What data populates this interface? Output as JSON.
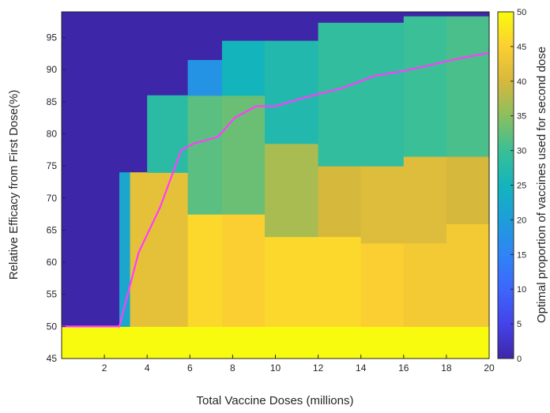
{
  "chart_data": {
    "type": "heatmap",
    "xlabel": "Total Vaccine Doses (millions)",
    "ylabel": "Relative Efficacy from First Dose(%)",
    "colorbar_label": "Optimal proportion of vaccines used for second dose",
    "xlim": [
      0,
      20
    ],
    "ylim": [
      45,
      99
    ],
    "clim": [
      0,
      50
    ],
    "colormap": "parula",
    "x_ticks": [
      2,
      4,
      6,
      8,
      10,
      12,
      14,
      16,
      18,
      20
    ],
    "y_ticks": [
      45,
      50,
      55,
      60,
      65,
      70,
      75,
      80,
      85,
      90,
      95
    ],
    "colorbar_ticks": [
      0,
      5,
      10,
      15,
      20,
      25,
      30,
      35,
      40,
      45,
      50
    ],
    "regions": [
      {
        "x": [
          0,
          20
        ],
        "y": [
          45,
          50
        ],
        "value": 50
      },
      {
        "x": [
          0,
          2.7
        ],
        "y": [
          50,
          99
        ],
        "value": 0
      },
      {
        "x": [
          2.7,
          4
        ],
        "y": [
          74,
          99
        ],
        "value": 0
      },
      {
        "x": [
          4,
          5.9
        ],
        "y": [
          86,
          99
        ],
        "value": 0
      },
      {
        "x": [
          5.9,
          7.5
        ],
        "y": [
          91.5,
          99
        ],
        "value": 0
      },
      {
        "x": [
          7.5,
          9.5
        ],
        "y": [
          94.5,
          99
        ],
        "value": 0
      },
      {
        "x": [
          9.5,
          12
        ],
        "y": [
          94.5,
          99
        ],
        "value": 0
      },
      {
        "x": [
          12,
          16
        ],
        "y": [
          97.3,
          99
        ],
        "value": 0
      },
      {
        "x": [
          16,
          20
        ],
        "y": [
          98.3,
          99
        ],
        "value": 0
      },
      {
        "x": [
          2.7,
          3.2
        ],
        "y": [
          50,
          74
        ],
        "value": 22
      },
      {
        "x": [
          3.2,
          5.9
        ],
        "y": [
          50,
          74
        ],
        "value": 42
      },
      {
        "x": [
          4,
          5.9
        ],
        "y": [
          74,
          86
        ],
        "value": 28
      },
      {
        "x": [
          5.9,
          7.5
        ],
        "y": [
          50,
          67.5
        ],
        "value": 46
      },
      {
        "x": [
          5.9,
          7.5
        ],
        "y": [
          67.5,
          86
        ],
        "value": 32
      },
      {
        "x": [
          5.9,
          7.5
        ],
        "y": [
          86,
          91.5
        ],
        "value": 18
      },
      {
        "x": [
          7.5,
          9.5
        ],
        "y": [
          50,
          67.5
        ],
        "value": 45
      },
      {
        "x": [
          7.5,
          9.5
        ],
        "y": [
          67.5,
          86
        ],
        "value": 33
      },
      {
        "x": [
          7.5,
          9.5
        ],
        "y": [
          86,
          94.5
        ],
        "value": 25
      },
      {
        "x": [
          9.5,
          12
        ],
        "y": [
          50,
          64
        ],
        "value": 46
      },
      {
        "x": [
          9.5,
          12
        ],
        "y": [
          64,
          78.5
        ],
        "value": 37
      },
      {
        "x": [
          9.5,
          12
        ],
        "y": [
          78.5,
          94.5
        ],
        "value": 27
      },
      {
        "x": [
          12,
          14
        ],
        "y": [
          50,
          64
        ],
        "value": 46
      },
      {
        "x": [
          12,
          14
        ],
        "y": [
          64,
          75
        ],
        "value": 40
      },
      {
        "x": [
          12,
          14
        ],
        "y": [
          75,
          97.3
        ],
        "value": 29
      },
      {
        "x": [
          14,
          16
        ],
        "y": [
          50,
          63
        ],
        "value": 45
      },
      {
        "x": [
          14,
          16
        ],
        "y": [
          63,
          75
        ],
        "value": 41
      },
      {
        "x": [
          14,
          16
        ],
        "y": [
          75,
          97.3
        ],
        "value": 29
      },
      {
        "x": [
          16,
          18
        ],
        "y": [
          50,
          63
        ],
        "value": 44
      },
      {
        "x": [
          16,
          18
        ],
        "y": [
          63,
          76.5
        ],
        "value": 41
      },
      {
        "x": [
          16,
          18
        ],
        "y": [
          76.5,
          98.3
        ],
        "value": 30
      },
      {
        "x": [
          18,
          20
        ],
        "y": [
          50,
          66
        ],
        "value": 44
      },
      {
        "x": [
          18,
          20
        ],
        "y": [
          66,
          76.5
        ],
        "value": 40
      },
      {
        "x": [
          18,
          20
        ],
        "y": [
          76.5,
          98.3
        ],
        "value": 31
      }
    ],
    "line": {
      "color": "#ff3cff",
      "x": [
        0,
        2.7,
        3.6,
        4.6,
        5.6,
        6.2,
        7.3,
        8.1,
        9.1,
        10,
        11,
        12,
        13,
        14,
        14.6,
        16,
        17,
        18,
        19,
        20
      ],
      "y": [
        50,
        50,
        61.5,
        68.5,
        77.5,
        78.5,
        79.5,
        82.5,
        84.3,
        84.3,
        85.3,
        86.2,
        87,
        88.2,
        89,
        89.8,
        90.5,
        91.3,
        92,
        92.6
      ]
    }
  }
}
